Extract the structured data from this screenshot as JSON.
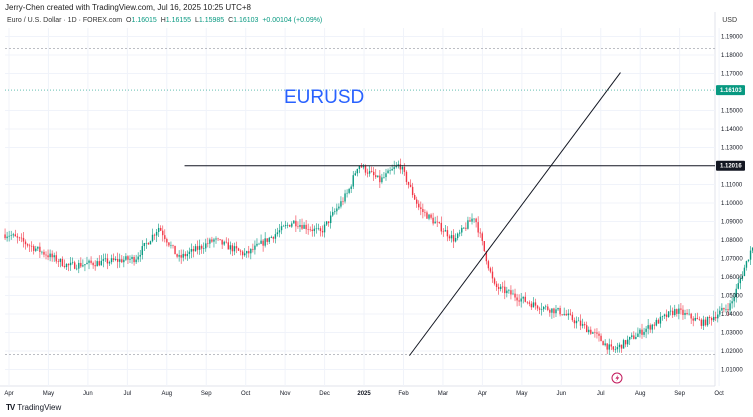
{
  "caption": "Jerry-Chen created with TradingView.com, Jul 16, 2025 10:25 UTC+8",
  "legend": {
    "title": "Euro / U.S. Dollar · 1D · FOREX.com",
    "open_label": "O",
    "open": "1.16015",
    "high_label": "H",
    "high": "1.16155",
    "low_label": "L",
    "low": "1.15985",
    "close_label": "C",
    "close": "1.16103",
    "change": "+0.00104 (+0.09%)"
  },
  "currency": "USD",
  "chart_data": {
    "type": "candlestick",
    "title": "EURUSD",
    "y_ticks": [
      "1.19000",
      "1.18000",
      "1.17000",
      "1.15000",
      "1.14000",
      "1.13000",
      "1.11000",
      "1.10000",
      "1.09000",
      "1.08000",
      "1.07000",
      "1.06000",
      "1.05000",
      "1.04000",
      "1.03000",
      "1.02000",
      "1.01000"
    ],
    "x_ticks": [
      "Apr",
      "May",
      "Jun",
      "Jul",
      "Aug",
      "Sep",
      "Oct",
      "Nov",
      "Dec",
      "2025",
      "Feb",
      "Mar",
      "Apr",
      "May",
      "Jun",
      "Jul",
      "Aug",
      "Sep",
      "Oct"
    ],
    "current_price_label": "1.16103",
    "horizontal_level_label": "1.12016",
    "ylim": [
      1.005,
      1.197
    ],
    "horizontal_level": 1.12016,
    "current_price": 1.16103,
    "upper_dashed_level": 1.1835,
    "lower_dashed_level": 1.018,
    "trendline": [
      {
        "x": "Feb 2025",
        "y": 1.0175
      },
      {
        "x": "Jul 2025",
        "y": 1.1705
      }
    ],
    "path_points": [
      [
        0,
        1.083
      ],
      [
        1.5,
        1.066
      ],
      [
        3.2,
        1.07
      ],
      [
        3.8,
        1.087
      ],
      [
        4.3,
        1.07
      ],
      [
        5.2,
        1.08
      ],
      [
        6.0,
        1.072
      ],
      [
        7.2,
        1.09
      ],
      [
        7.9,
        1.084
      ],
      [
        8.6,
        1.106
      ],
      [
        8.85,
        1.121
      ],
      [
        9.4,
        1.112
      ],
      [
        9.9,
        1.121
      ],
      [
        10.4,
        1.097
      ],
      [
        11.3,
        1.08
      ],
      [
        11.8,
        1.093
      ],
      [
        12.3,
        1.055
      ],
      [
        13.3,
        1.045
      ],
      [
        14.0,
        1.041
      ],
      [
        14.8,
        1.03
      ],
      [
        15.3,
        1.02
      ],
      [
        16.0,
        1.03
      ],
      [
        16.9,
        1.042
      ],
      [
        17.6,
        1.035
      ],
      [
        18.3,
        1.045
      ],
      [
        18.9,
        1.08
      ],
      [
        19.4,
        1.096
      ],
      [
        19.8,
        1.082
      ],
      [
        20.6,
        1.1
      ],
      [
        21.0,
        1.13
      ],
      [
        21.35,
        1.15
      ],
      [
        21.7,
        1.136
      ],
      [
        22.2,
        1.14
      ],
      [
        22.7,
        1.128
      ],
      [
        23.0,
        1.113
      ],
      [
        23.5,
        1.128
      ],
      [
        24.0,
        1.14
      ],
      [
        24.6,
        1.148
      ],
      [
        25.0,
        1.158
      ],
      [
        25.6,
        1.167
      ],
      [
        25.95,
        1.1828
      ],
      [
        26.5,
        1.175
      ],
      [
        27.0,
        1.161
      ]
    ]
  },
  "brand": {
    "logo": "TV",
    "name": "TradingView"
  },
  "colors": {
    "up": "#089981",
    "down": "#f23645",
    "price_tag": "#089981",
    "level_tag": "#131722",
    "grid": "#f0f3fa",
    "dashed": "#9598a1",
    "title": "#2962ff",
    "marker": "#c2185b"
  },
  "icons": {
    "bottom_marker": "lightning-event-icon",
    "brand_logo": "tradingview-logo-icon"
  }
}
